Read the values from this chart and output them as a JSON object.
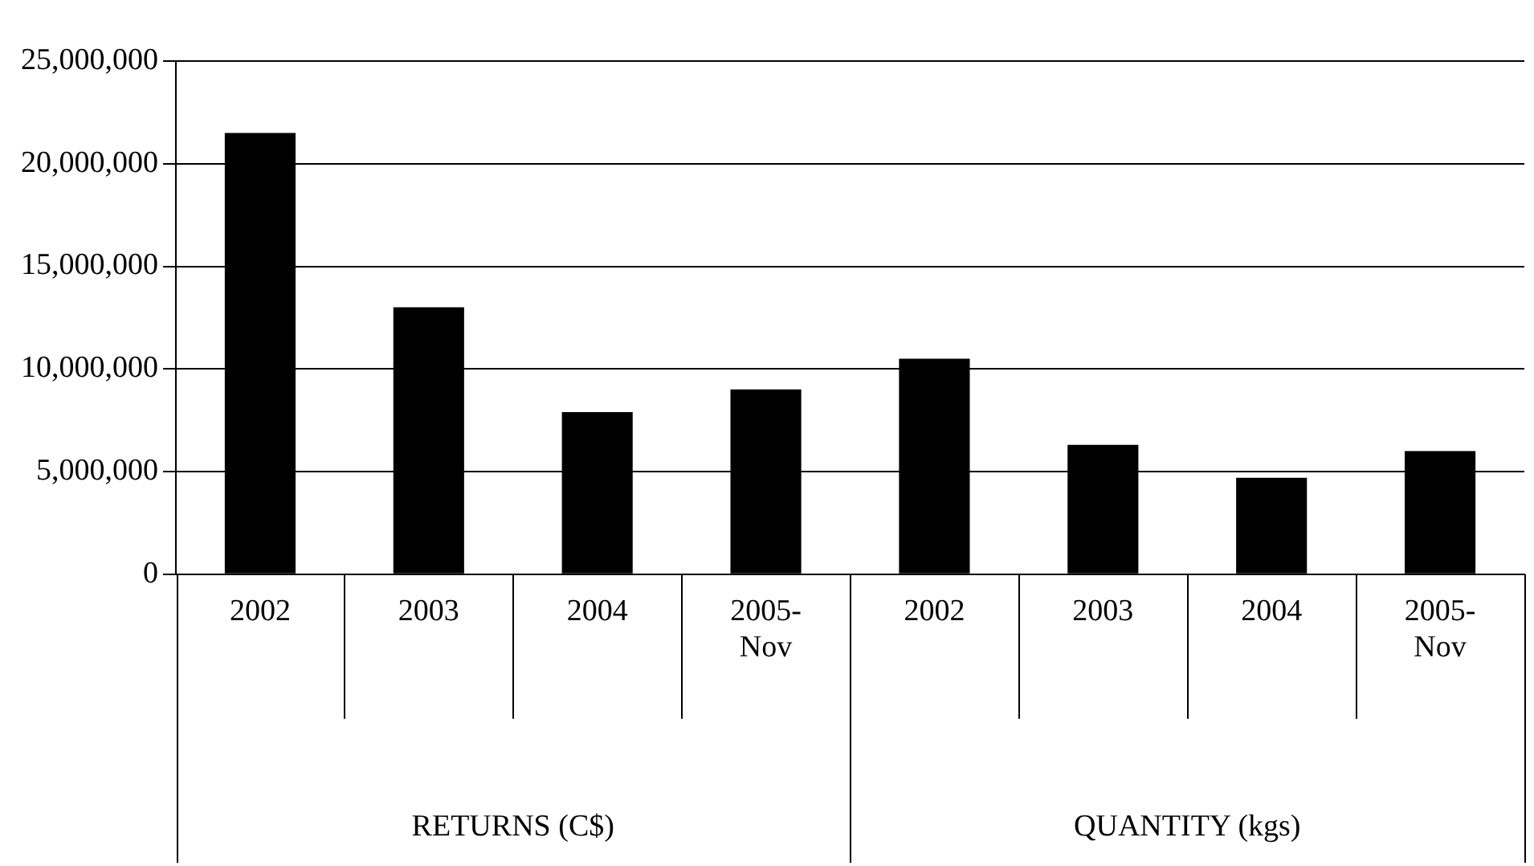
{
  "chart_data": {
    "type": "bar",
    "categories": [
      "2002",
      "2003",
      "2004",
      "2005-Nov",
      "2002",
      "2003",
      "2004",
      "2005-Nov"
    ],
    "values": [
      21500000,
      13000000,
      7900000,
      9000000,
      10500000,
      6300000,
      4700000,
      6000000
    ],
    "color": "#000000",
    "ylim": [
      0,
      25000000
    ],
    "yticks": [
      0,
      {
        "value": 5000000,
        "label": "5,000,000"
      },
      {
        "value": 10000000,
        "label": "10,000,000"
      },
      {
        "value": 15000000,
        "label": "15,000,000"
      },
      {
        "value": 20000000,
        "label": "20,000,000"
      },
      {
        "value": 25000000,
        "label": "25,000,000"
      }
    ],
    "grid": "y",
    "legend": false,
    "annotations": [
      "RETURNS (C$)",
      "QUANTITY (kgs)"
    ]
  }
}
